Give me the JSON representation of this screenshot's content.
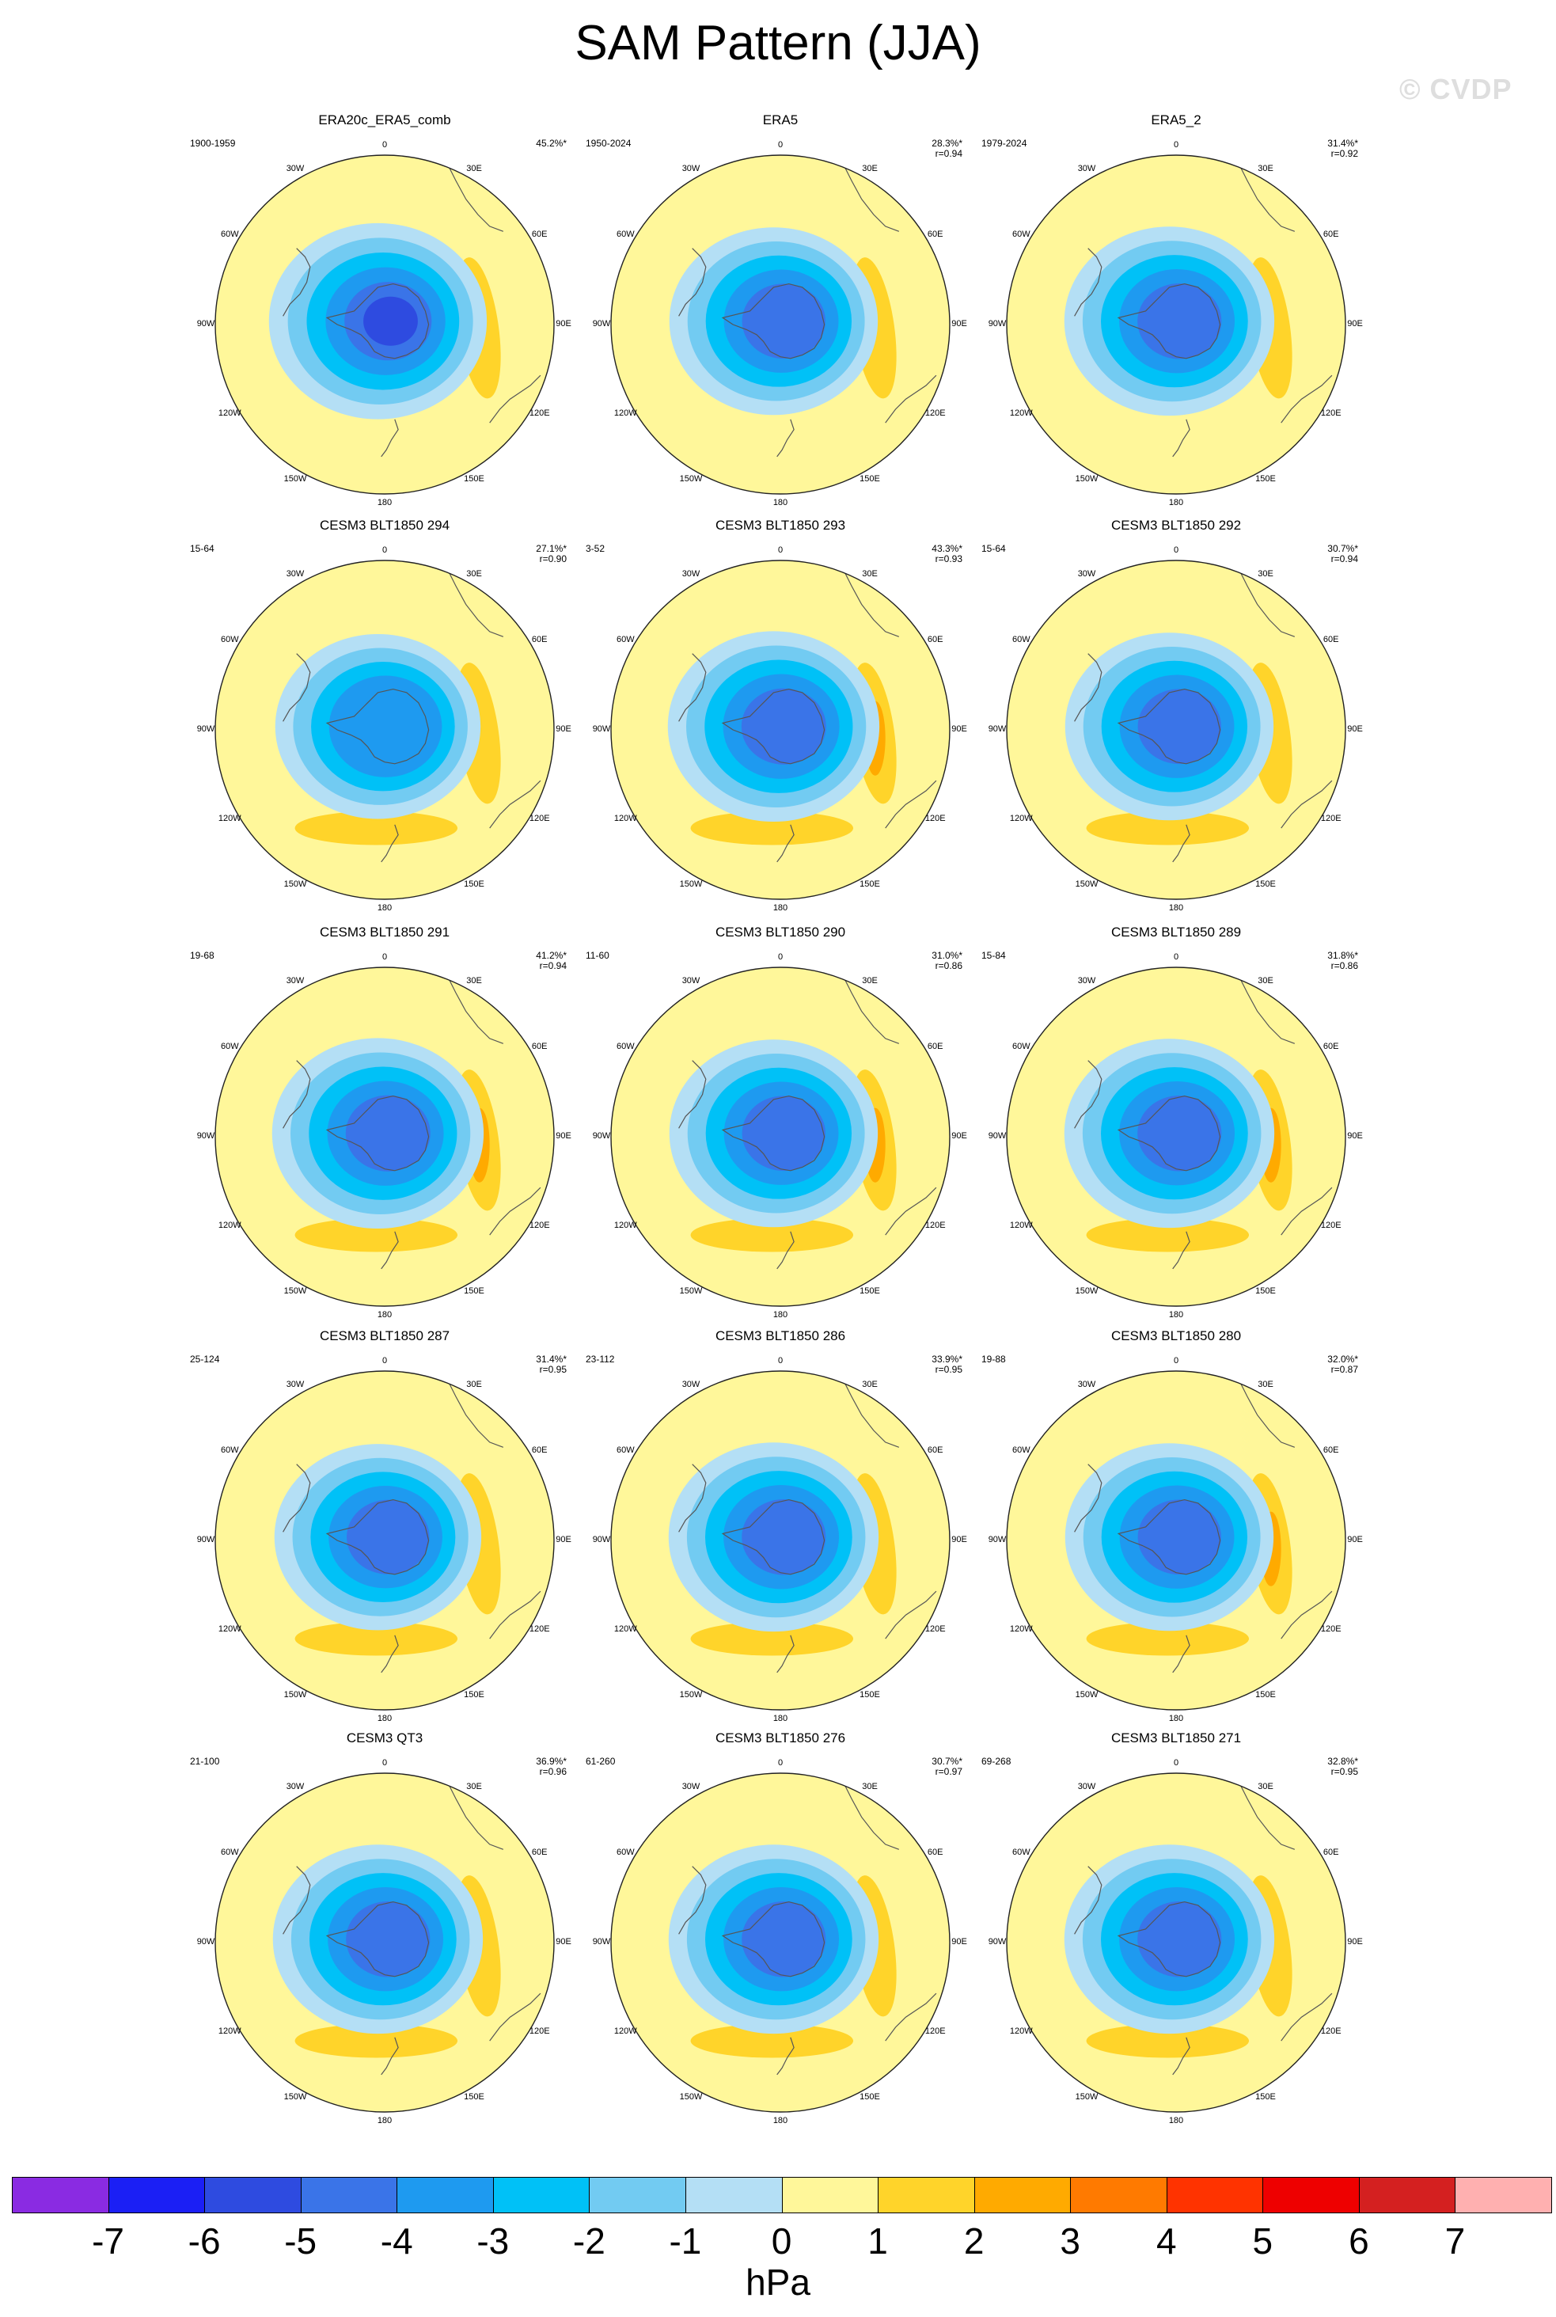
{
  "title": "SAM Pattern (JJA)",
  "watermark": "© CVDP",
  "longitude_labels": [
    "0",
    "30E",
    "60E",
    "90E",
    "120E",
    "150E",
    "180",
    "150W",
    "120W",
    "90W",
    "60W",
    "30W"
  ],
  "panels": [
    {
      "title": "ERA20c_ERA5_comb",
      "years": "1900-1959",
      "pct": "45.2%*",
      "r": "",
      "amp": 1.25,
      "east": 0.2,
      "west": 0.0
    },
    {
      "title": "ERA5",
      "years": "1950-2024",
      "pct": "28.3%*",
      "r": "r=0.94",
      "amp": 0.95,
      "east": 0.75,
      "west": 0.0
    },
    {
      "title": "ERA5_2",
      "years": "1979-2024",
      "pct": "31.4%*",
      "r": "r=0.92",
      "amp": 1.0,
      "east": 0.9,
      "west": 0.0
    },
    {
      "title": "CESM3 BLT1850 294",
      "years": "15-64",
      "pct": "27.1%*",
      "r": "r=0.90",
      "amp": 0.85,
      "east": 0.7,
      "west": 0.6
    },
    {
      "title": "CESM3 BLT1850 293",
      "years": "3-52",
      "pct": "43.3%*",
      "r": "r=0.93",
      "amp": 1.05,
      "east": 1.1,
      "west": 0.3
    },
    {
      "title": "CESM3 BLT1850 292",
      "years": "15-64",
      "pct": "30.7%*",
      "r": "r=0.94",
      "amp": 0.95,
      "east": 0.8,
      "west": 0.2
    },
    {
      "title": "CESM3 BLT1850 291",
      "years": "19-68",
      "pct": "41.2%*",
      "r": "r=0.94",
      "amp": 1.05,
      "east": 1.2,
      "west": 0.4
    },
    {
      "title": "CESM3 BLT1850 290",
      "years": "11-60",
      "pct": "31.0%*",
      "r": "r=0.86",
      "amp": 0.95,
      "east": 1.05,
      "west": 0.3
    },
    {
      "title": "CESM3 BLT1850 289",
      "years": "15-84",
      "pct": "31.8%*",
      "r": "r=0.86",
      "amp": 1.0,
      "east": 1.2,
      "west": 0.2
    },
    {
      "title": "CESM3 BLT1850 287",
      "years": "25-124",
      "pct": "31.4%*",
      "r": "r=0.95",
      "amp": 0.9,
      "east": 0.7,
      "west": 0.6
    },
    {
      "title": "CESM3 BLT1850 286",
      "years": "23-112",
      "pct": "33.9%*",
      "r": "r=0.95",
      "amp": 1.0,
      "east": 0.7,
      "west": 0.3
    },
    {
      "title": "CESM3 BLT1850 280",
      "years": "19-88",
      "pct": "32.0%*",
      "r": "r=0.87",
      "amp": 0.95,
      "east": 1.0,
      "west": 0.2
    },
    {
      "title": "CESM3 QT3",
      "years": "21-100",
      "pct": "36.9%*",
      "r": "r=0.96",
      "amp": 1.0,
      "east": 0.75,
      "west": 0.6
    },
    {
      "title": "CESM3 BLT1850 276",
      "years": "61-260",
      "pct": "30.7%*",
      "r": "r=0.97",
      "amp": 1.0,
      "east": 0.6,
      "west": 0.8
    },
    {
      "title": "CESM3 BLT1850 271",
      "years": "69-268",
      "pct": "32.8%*",
      "r": "r=0.95",
      "amp": 1.0,
      "east": 0.8,
      "west": 0.3
    }
  ],
  "colorbar": {
    "unit": "hPa",
    "levels": [
      "-7",
      "-6",
      "-5",
      "-4",
      "-3",
      "-2",
      "-1",
      "0",
      "1",
      "2",
      "3",
      "4",
      "5",
      "6",
      "7"
    ],
    "colors": [
      "#8a2be2",
      "#1b1ff5",
      "#2e4be0",
      "#3a74e8",
      "#1e9af0",
      "#00c1f7",
      "#72cbf2",
      "#b4dff5",
      "#fff79a",
      "#ffd42a",
      "#ffaa00",
      "#ff7a00",
      "#ff3300",
      "#ee0000",
      "#d42020",
      "#ffb0b0"
    ]
  }
}
